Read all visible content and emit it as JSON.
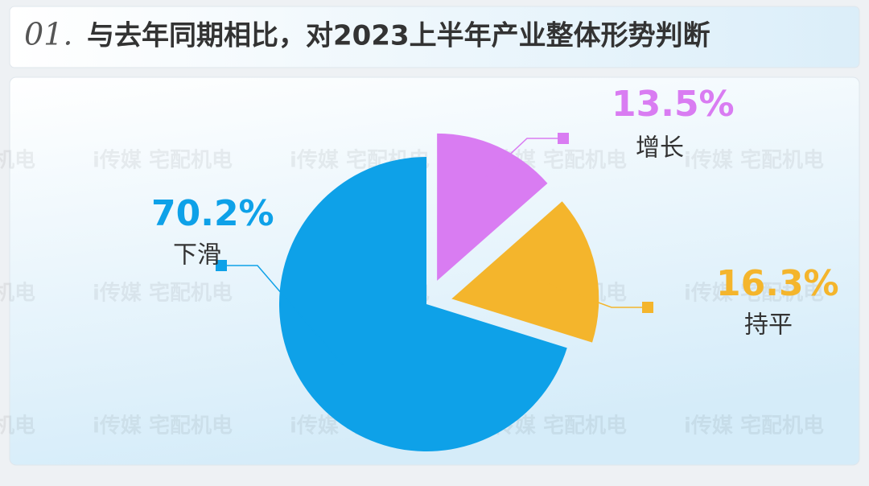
{
  "chart_data": {
    "type": "pie",
    "number": "01.",
    "title": "与去年同期相比，对2023上半年产业整体形势判断",
    "watermark": "i传媒 宅配机电",
    "categories": [
      "增长",
      "持平",
      "下滑"
    ],
    "values": [
      13.5,
      16.3,
      70.2
    ],
    "value_labels": [
      "13.5%",
      "16.3%",
      "70.2%"
    ],
    "colors": [
      "#d97cf2",
      "#f4b52c",
      "#0ea1e8"
    ]
  }
}
